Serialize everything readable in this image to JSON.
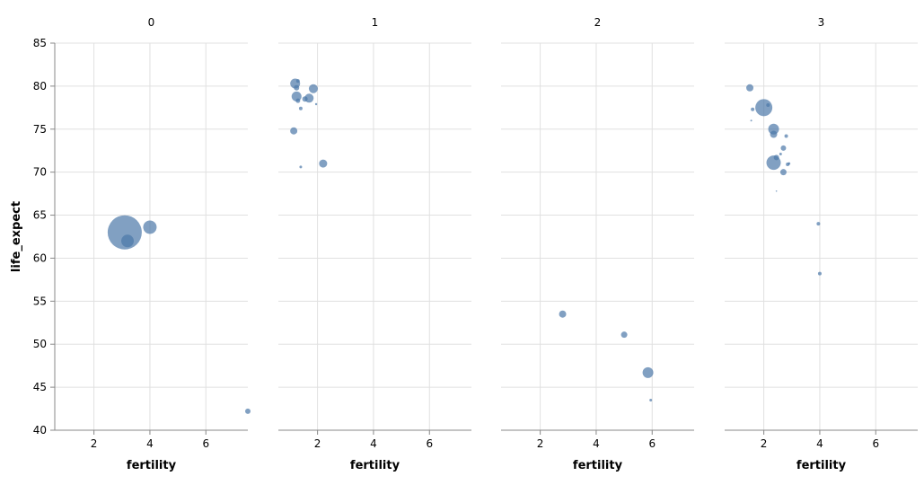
{
  "chart_data": {
    "type": "scatter",
    "xlabel": "fertility",
    "ylabel": "life_expect",
    "xlim": [
      0.6,
      7.5
    ],
    "ylim": [
      40,
      85
    ],
    "xticks": [
      2,
      4,
      6
    ],
    "yticks": [
      40,
      45,
      50,
      55,
      60,
      65,
      70,
      75,
      80,
      85
    ],
    "facets": [
      {
        "label": "0",
        "points": [
          {
            "x": 3.1,
            "y": 63.0,
            "size": 19
          },
          {
            "x": 3.2,
            "y": 62.0,
            "size": 7
          },
          {
            "x": 4.0,
            "y": 63.6,
            "size": 7.5
          },
          {
            "x": 7.5,
            "y": 42.2,
            "size": 3
          }
        ]
      },
      {
        "label": "1",
        "points": [
          {
            "x": 1.2,
            "y": 80.3,
            "size": 5.5
          },
          {
            "x": 1.3,
            "y": 80.6,
            "size": 2
          },
          {
            "x": 1.25,
            "y": 79.8,
            "size": 3
          },
          {
            "x": 1.85,
            "y": 79.7,
            "size": 5
          },
          {
            "x": 1.25,
            "y": 78.8,
            "size": 5.5
          },
          {
            "x": 1.7,
            "y": 78.6,
            "size": 5
          },
          {
            "x": 1.55,
            "y": 78.5,
            "size": 3
          },
          {
            "x": 1.3,
            "y": 78.3,
            "size": 2.5
          },
          {
            "x": 1.95,
            "y": 77.9,
            "size": 1.2
          },
          {
            "x": 1.4,
            "y": 77.4,
            "size": 2
          },
          {
            "x": 1.15,
            "y": 74.8,
            "size": 4
          },
          {
            "x": 2.2,
            "y": 71.0,
            "size": 4.5
          },
          {
            "x": 1.4,
            "y": 70.6,
            "size": 1.5
          }
        ]
      },
      {
        "label": "2",
        "points": [
          {
            "x": 2.8,
            "y": 53.5,
            "size": 4
          },
          {
            "x": 5.0,
            "y": 51.1,
            "size": 3.5
          },
          {
            "x": 5.85,
            "y": 46.7,
            "size": 6
          },
          {
            "x": 5.95,
            "y": 43.5,
            "size": 1.5
          }
        ]
      },
      {
        "label": "3",
        "points": [
          {
            "x": 1.5,
            "y": 79.8,
            "size": 4
          },
          {
            "x": 1.6,
            "y": 77.3,
            "size": 2
          },
          {
            "x": 2.0,
            "y": 77.5,
            "size": 9.5
          },
          {
            "x": 2.15,
            "y": 77.8,
            "size": 2
          },
          {
            "x": 1.55,
            "y": 76.0,
            "size": 1
          },
          {
            "x": 2.35,
            "y": 75.0,
            "size": 6
          },
          {
            "x": 2.35,
            "y": 74.4,
            "size": 4
          },
          {
            "x": 2.8,
            "y": 74.2,
            "size": 2
          },
          {
            "x": 2.7,
            "y": 72.8,
            "size": 3
          },
          {
            "x": 2.45,
            "y": 71.7,
            "size": 3
          },
          {
            "x": 2.6,
            "y": 72.1,
            "size": 1.5
          },
          {
            "x": 2.35,
            "y": 71.1,
            "size": 8
          },
          {
            "x": 2.85,
            "y": 70.9,
            "size": 2
          },
          {
            "x": 2.9,
            "y": 71.0,
            "size": 1.5
          },
          {
            "x": 2.7,
            "y": 70.0,
            "size": 3.5
          },
          {
            "x": 2.45,
            "y": 67.8,
            "size": 0.8
          },
          {
            "x": 3.95,
            "y": 64.0,
            "size": 2
          },
          {
            "x": 4.0,
            "y": 58.2,
            "size": 2
          }
        ]
      }
    ]
  }
}
